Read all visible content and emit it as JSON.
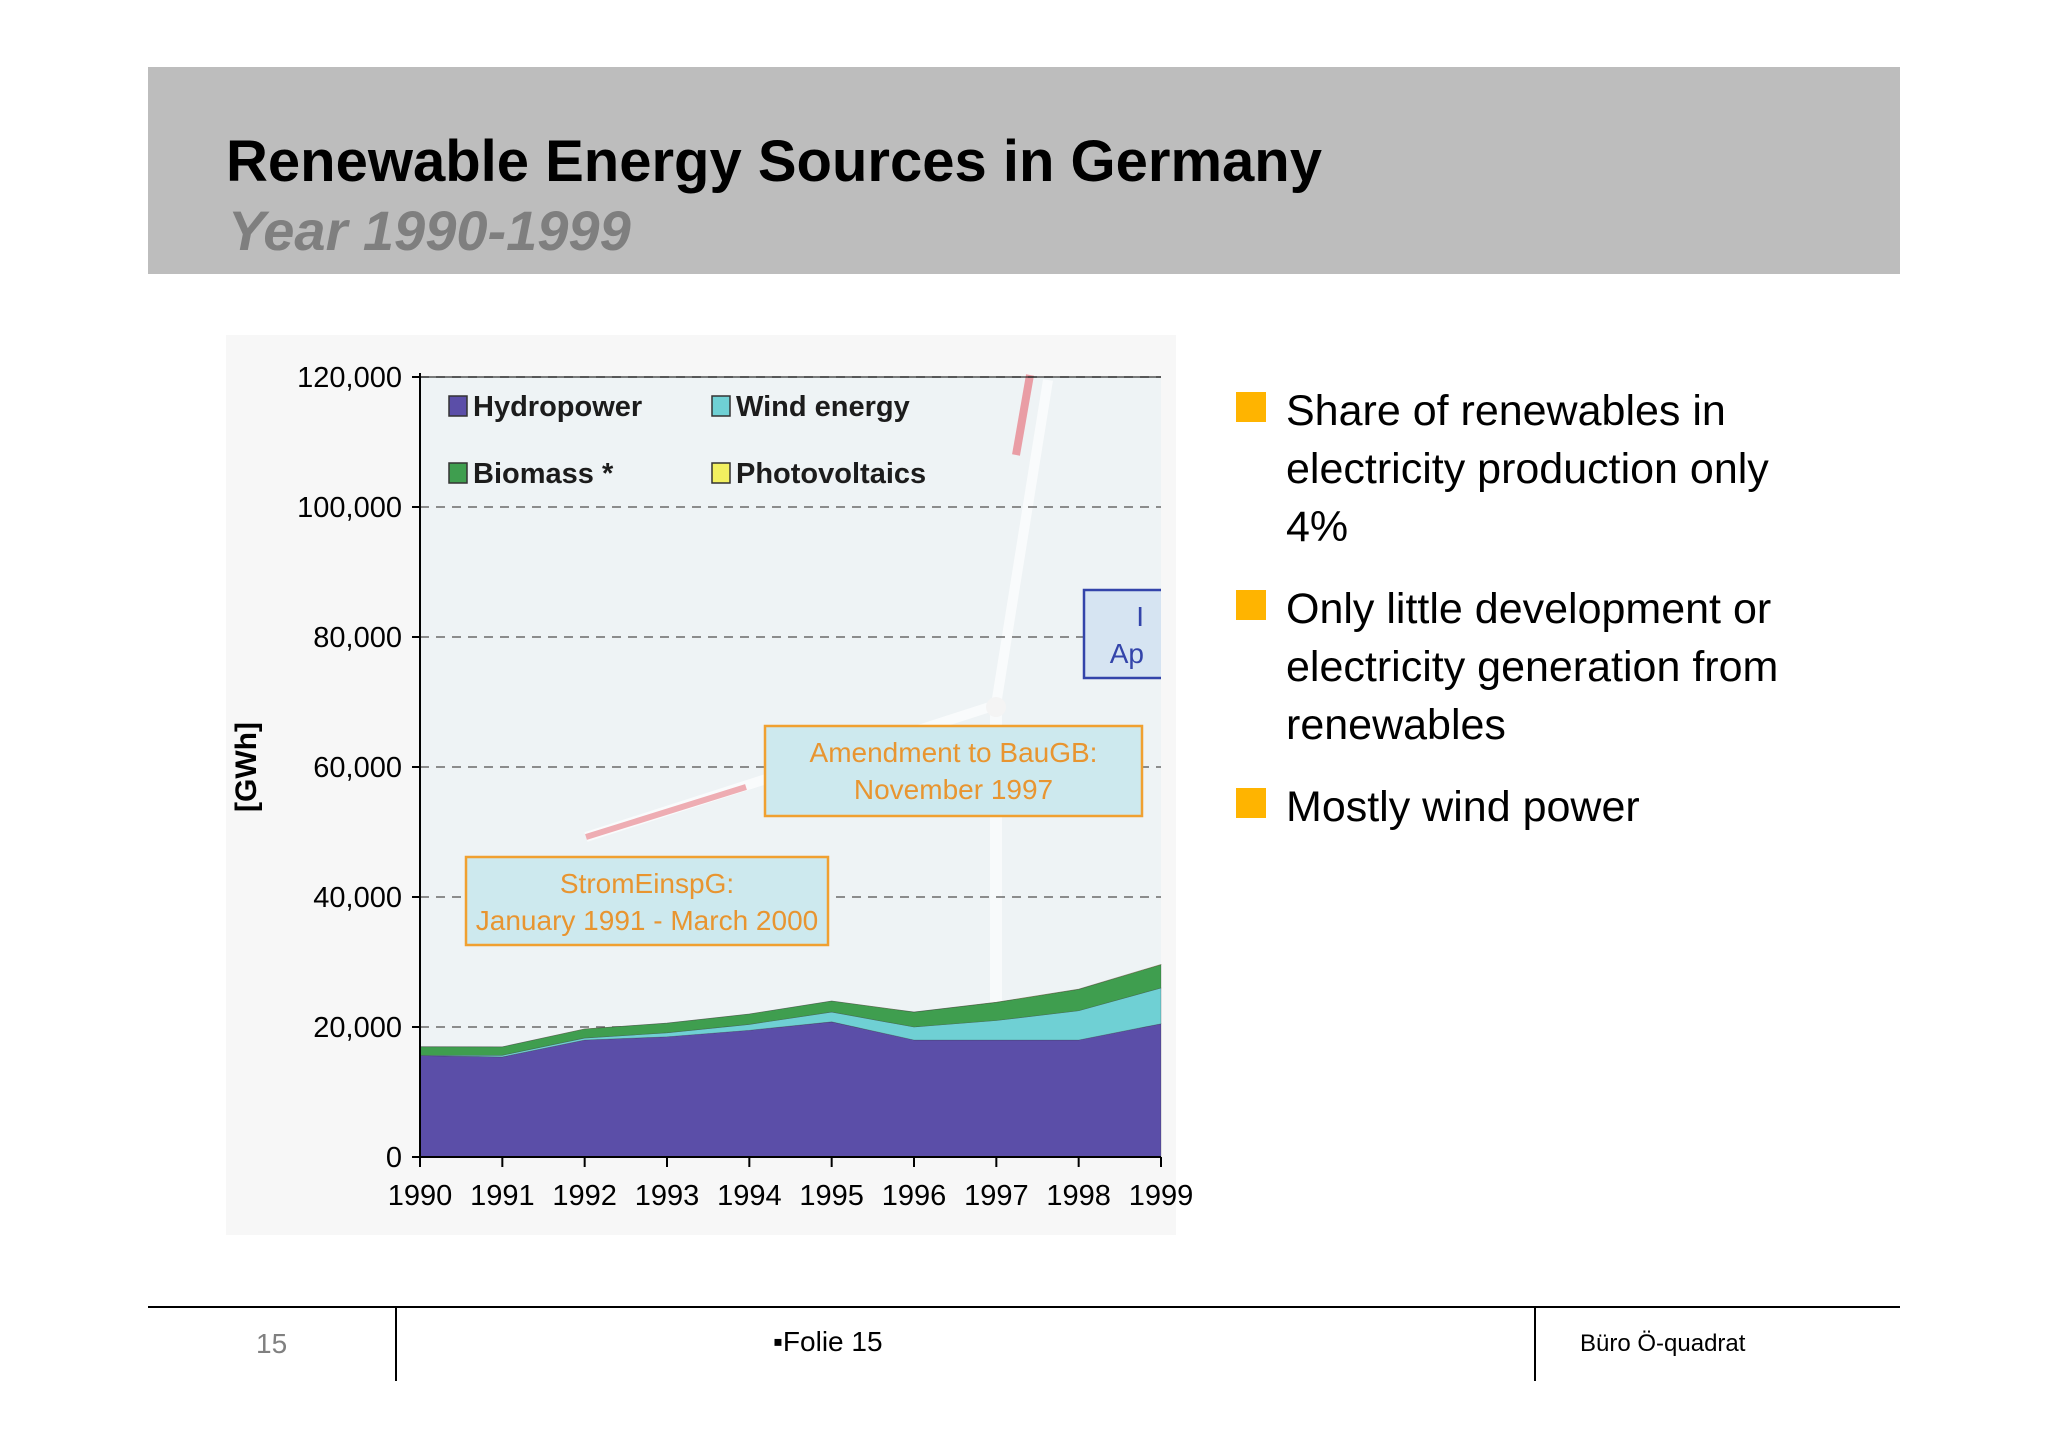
{
  "slide": {
    "title": "Renewable Energy Sources in Germany",
    "subtitle": "Year 1990-1999",
    "bullets": [
      "Share of renewables in electricity production only 4%",
      "Only little development or electricity generation from renewables",
      "Mostly wind power"
    ],
    "bullet_color": "#ffb400"
  },
  "footer": {
    "page_number": "15",
    "folie_label": "▪Folie 15",
    "company": "Büro Ö-quadrat"
  },
  "chart_data": {
    "type": "area",
    "stacked": true,
    "ylabel": "[GWh]",
    "xlabel": "",
    "ylim": [
      0,
      120000
    ],
    "yticks": [
      "0",
      "20,000",
      "40,000",
      "60,000",
      "80,000",
      "100,000",
      "120,000"
    ],
    "x": [
      "1990",
      "1991",
      "1992",
      "1993",
      "1994",
      "1995",
      "1996",
      "1997",
      "1998",
      "1999"
    ],
    "series": [
      {
        "name": "Hydropower",
        "color": "#5b4ea8",
        "values": [
          15600,
          15400,
          18000,
          18500,
          19500,
          20800,
          18000,
          18000,
          18000,
          20500
        ]
      },
      {
        "name": "Wind energy",
        "color": "#6fd0d4",
        "values": [
          70,
          250,
          300,
          600,
          900,
          1500,
          2000,
          3000,
          4500,
          5500
        ]
      },
      {
        "name": "Biomass *",
        "color": "#3f9e4f",
        "values": [
          1300,
          1300,
          1400,
          1500,
          1600,
          1700,
          2300,
          2800,
          3300,
          3600
        ]
      },
      {
        "name": "Photovoltaics",
        "color": "#f2f060",
        "values": [
          1,
          1,
          3,
          3,
          7,
          7,
          12,
          18,
          35,
          30
        ]
      }
    ],
    "annotations": [
      {
        "line1": "StromEinspG:",
        "line2": "January 1991 - March 2000"
      },
      {
        "line1": "Amendment to BauGB:",
        "line2": "November 1997"
      },
      {
        "line1": "I",
        "line2": "Ap"
      }
    ],
    "grid": "dashed",
    "legend": "top-left"
  }
}
